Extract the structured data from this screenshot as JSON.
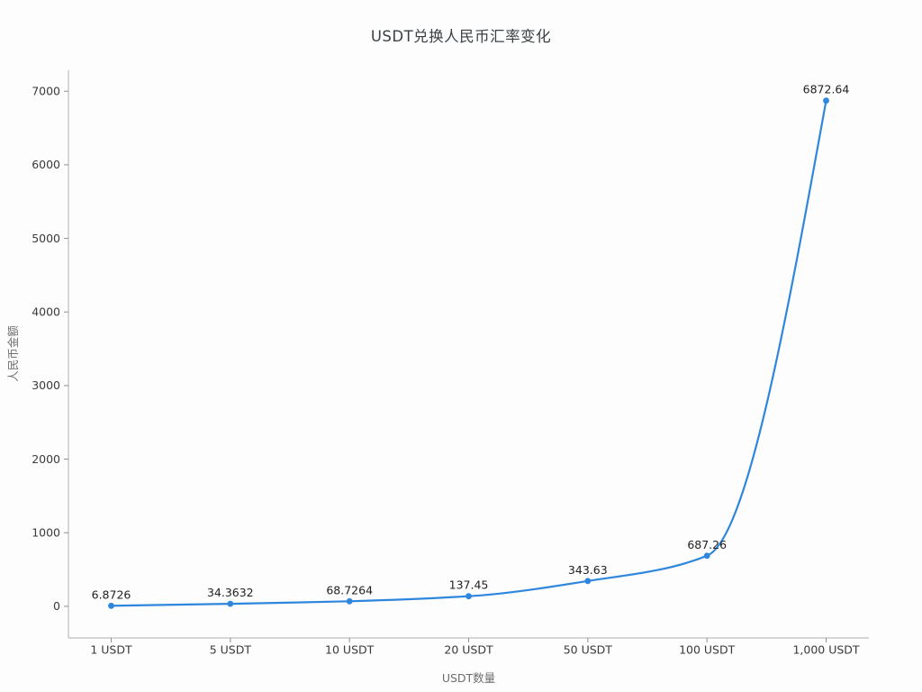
{
  "window": {
    "background": "#fdfdfd"
  },
  "chart_data": {
    "type": "line",
    "title": "USDT兑换人民币汇率变化",
    "xlabel": "USDT数量",
    "ylabel": "人民币金额",
    "categories": [
      "1 USDT",
      "5 USDT",
      "10 USDT",
      "20 USDT",
      "50 USDT",
      "100 USDT",
      "1,000 USDT"
    ],
    "series": [
      {
        "name": "人民币金额",
        "values": [
          6.8726,
          34.3632,
          68.7264,
          137.45,
          343.63,
          687.26,
          6872.64
        ]
      }
    ],
    "point_labels": [
      "6.8726",
      "34.3632",
      "68.7264",
      "137.45",
      "343.63",
      "687.26",
      "6872.64"
    ],
    "yticks": [
      0,
      1000,
      2000,
      3000,
      4000,
      5000,
      6000,
      7000
    ],
    "ylim": [
      -430,
      7285
    ],
    "grid": false,
    "legend_position": "none",
    "smooth": true,
    "style": {
      "line_color": "#2f86dd",
      "marker_color": "#2f86dd",
      "spine_color": "#b0b0b0",
      "tick_color": "#8f8f8f",
      "tick_label_color": "#3a3a3a",
      "axis_title_color": "#6e6e6e",
      "point_label_color": "#1f1f1f",
      "title_color": "#3b4045"
    }
  }
}
